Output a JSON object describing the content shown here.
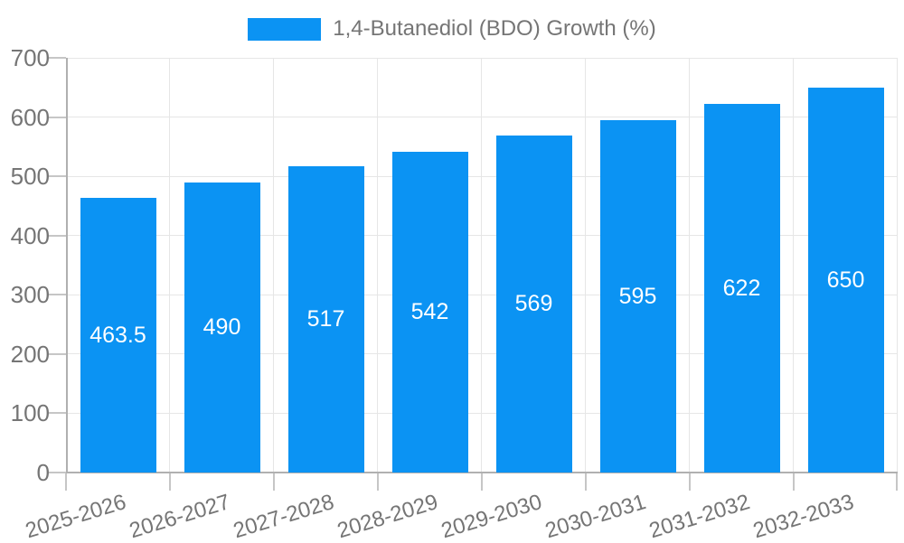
{
  "legend": {
    "label": "1,4-Butanediol (BDO) Growth (%)"
  },
  "chart_data": {
    "type": "bar",
    "title": "1,4-Butanediol (BDO) Growth (%)",
    "categories": [
      "2025-2026",
      "2026-2027",
      "2027-2028",
      "2028-2029",
      "2029-2030",
      "2030-2031",
      "2031-2032",
      "2032-2033"
    ],
    "series": [
      {
        "name": "1,4-Butanediol (BDO) Growth (%)",
        "values": [
          463.5,
          490,
          517,
          542,
          569,
          595,
          622,
          650
        ]
      }
    ],
    "values": [
      463.5,
      490,
      517,
      542,
      569,
      595,
      622,
      650
    ],
    "value_labels": [
      "463.5",
      "490",
      "517",
      "542",
      "569",
      "595",
      "622",
      "650"
    ],
    "xlabel": "",
    "ylabel": "",
    "ylim": [
      0,
      700
    ],
    "yticks": [
      0,
      100,
      200,
      300,
      400,
      500,
      600,
      700
    ],
    "grid": "on",
    "legend_position": "top",
    "colors": {
      "bar": "#0b93f3",
      "value_label": "#ffffff",
      "axis_text": "#757575",
      "grid_line": "#e6e6e6",
      "axis_line": "#b0b0b0",
      "tick_line": "#c6c6c6",
      "background": "#ffffff"
    }
  }
}
